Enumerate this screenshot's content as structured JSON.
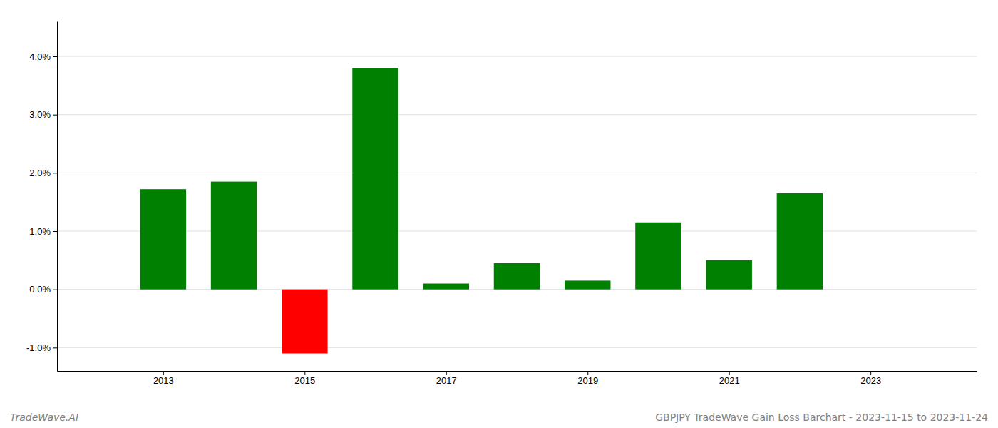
{
  "chart_data": {
    "type": "bar",
    "x": [
      2013,
      2014,
      2015,
      2016,
      2017,
      2018,
      2019,
      2020,
      2021,
      2022
    ],
    "values": [
      0.0172,
      0.0185,
      -0.011,
      0.038,
      0.001,
      0.0045,
      0.0015,
      0.0115,
      0.005,
      0.0165
    ],
    "colors": [
      "#008000",
      "#008000",
      "#ff0000",
      "#008000",
      "#008000",
      "#008000",
      "#008000",
      "#008000",
      "#008000",
      "#008000"
    ],
    "xlim": [
      2011.5,
      2024.5
    ],
    "xticks": [
      2013,
      2015,
      2017,
      2019,
      2021,
      2023
    ],
    "ylim": [
      -0.014,
      0.046
    ],
    "yticks": [
      {
        "value": -0.01,
        "label": "-1.0%"
      },
      {
        "value": 0.0,
        "label": "0.0%"
      },
      {
        "value": 0.01,
        "label": "1.0%"
      },
      {
        "value": 0.02,
        "label": "2.0%"
      },
      {
        "value": 0.03,
        "label": "3.0%"
      },
      {
        "value": 0.04,
        "label": "4.0%"
      }
    ],
    "grid": true,
    "annotations": [
      "TradeWave.AI",
      "GBPJPY TradeWave Gain Loss Barchart - 2023-11-15 to 2023-11-24"
    ]
  }
}
